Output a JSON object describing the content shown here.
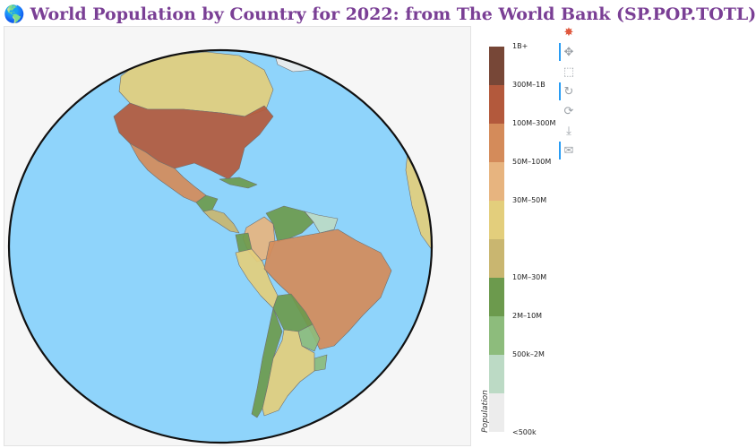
{
  "title": {
    "icon": "globe-icon",
    "text": "World Population by Country for 2022: from The World Bank (SP.POP.TOTL)"
  },
  "colors": {
    "ocean": "#8fd4fb",
    "title": "#7a3f95",
    "globe_outline": "#111111"
  },
  "toolbar": [
    {
      "name": "logo-icon",
      "active": false
    },
    {
      "name": "pan-icon",
      "active": true
    },
    {
      "name": "box-zoom-icon",
      "active": false
    },
    {
      "name": "wheel-zoom-icon",
      "active": true
    },
    {
      "name": "reset-icon",
      "active": false
    },
    {
      "name": "save-icon",
      "active": false
    },
    {
      "name": "hover-icon",
      "active": true
    }
  ],
  "legend": {
    "title": "Population",
    "bins": [
      {
        "label": "1B+",
        "color": "#774737"
      },
      {
        "label": "300M–1B",
        "color": "#b3593c"
      },
      {
        "label": "100M–300M",
        "color": "#d48b5a"
      },
      {
        "label": "50M–100M",
        "color": "#e7b47f"
      },
      {
        "label": "30M–50M",
        "color": "#e3ce7c"
      },
      {
        "label": "",
        "color": "#c9b670"
      },
      {
        "label": "10M–30M",
        "color": "#6c9a4d"
      },
      {
        "label": "2M–10M",
        "color": "#8dbc7c"
      },
      {
        "label": "500k–2M",
        "color": "#bcdac5"
      },
      {
        "label": "<500k",
        "color": "#ececec"
      }
    ]
  },
  "regions": [
    {
      "name": "Canada",
      "bin": "30M–50M"
    },
    {
      "name": "United States",
      "bin": "300M–1B"
    },
    {
      "name": "Mexico",
      "bin": "100M–300M"
    },
    {
      "name": "Guatemala",
      "bin": "10M–30M"
    },
    {
      "name": "Cuba",
      "bin": "10M–30M"
    },
    {
      "name": "Colombia",
      "bin": "50M–100M"
    },
    {
      "name": "Venezuela",
      "bin": "10M–30M"
    },
    {
      "name": "Guyana",
      "bin": "500k–2M"
    },
    {
      "name": "Ecuador",
      "bin": "10M–30M"
    },
    {
      "name": "Peru",
      "bin": "30M–50M"
    },
    {
      "name": "Brazil",
      "bin": "100M–300M"
    },
    {
      "name": "Bolivia",
      "bin": "10M–30M"
    },
    {
      "name": "Paraguay",
      "bin": "2M–10M"
    },
    {
      "name": "Uruguay",
      "bin": "2M–10M"
    },
    {
      "name": "Chile",
      "bin": "10M–30M"
    },
    {
      "name": "Argentina",
      "bin": "30M–50M"
    },
    {
      "name": "Greenland",
      "bin": "<500k"
    },
    {
      "name": "West Africa",
      "bin": "30M–50M"
    }
  ]
}
